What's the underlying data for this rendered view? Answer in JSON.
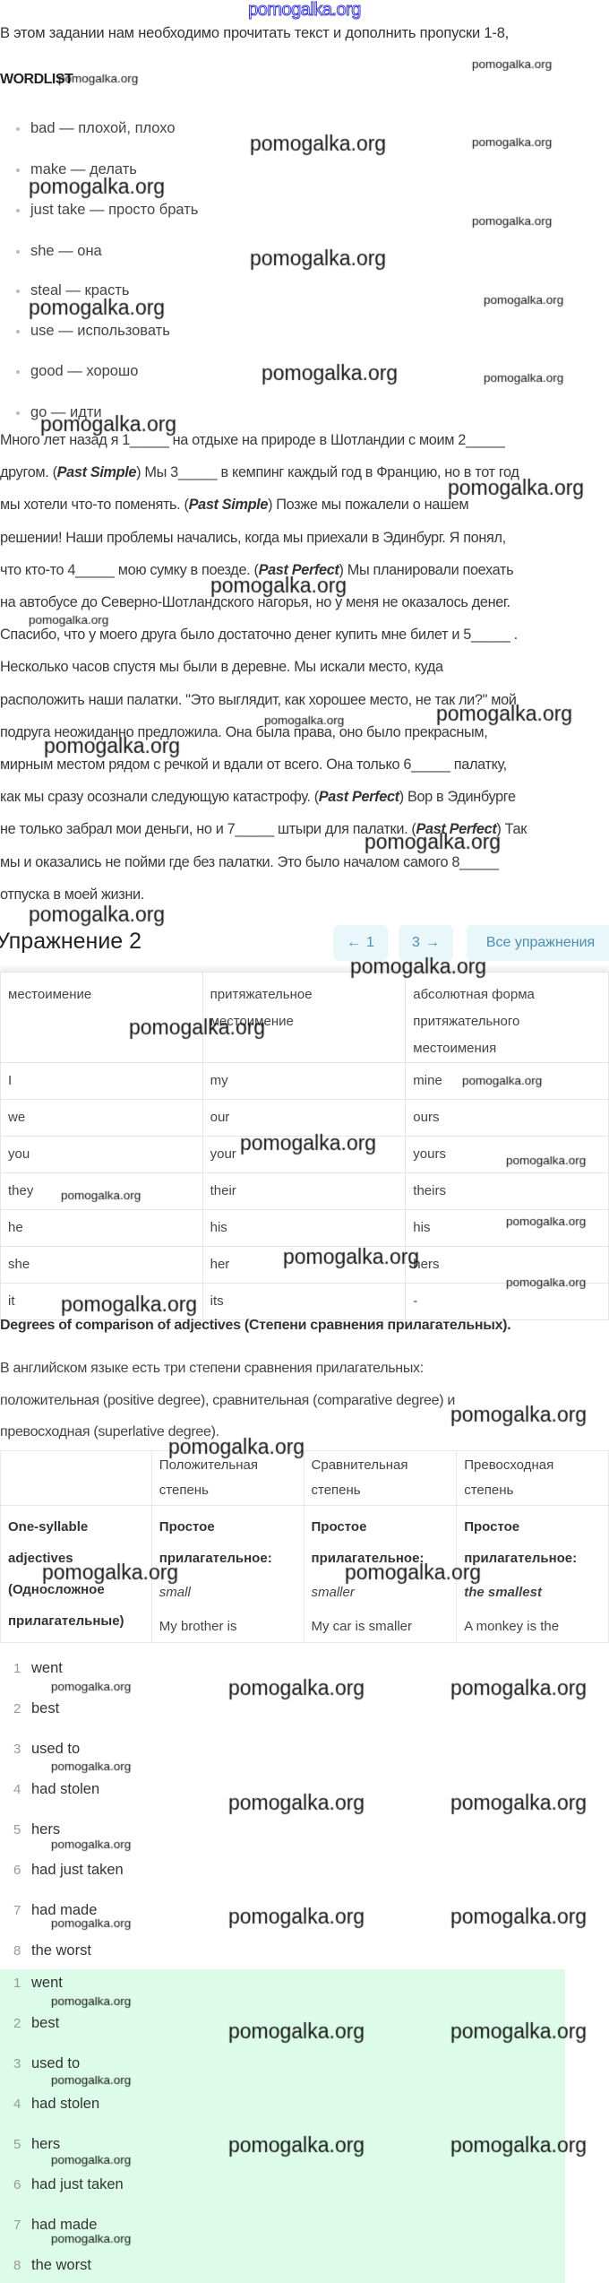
{
  "watermark": "pomogalka.org",
  "colors": {
    "accent_button_bg": "#e9f7fb",
    "accent_button_text": "#4c8fb0",
    "answer_highlight": "#dcfce9",
    "logo": "#3a3ad6"
  },
  "intro": "В этом задании нам необходимо прочитать текст и дополнить пропуски 1-8,",
  "wordlist": {
    "title": "WORDLIST",
    "items": [
      "bad — плохой, плохо",
      "make — делать",
      "just take — просто брать",
      "she — она",
      "steal — красть",
      "use — использовать",
      "good — хорошо",
      "go — идти"
    ]
  },
  "paragraph": [
    [
      "Много лет назад я 1_____ на отдыхе на природе в Шотландии с моим 2_____"
    ],
    [
      "другом. (",
      "Past Simple",
      ") Мы 3_____ в кемпинг каждый год в Францию, но в тот год"
    ],
    [
      "мы хотели что-то поменять. (",
      "Past Simple",
      ") Позже мы пожалели о нашем"
    ],
    [
      "решении! Наши проблемы начались, когда мы приехали в Эдинбург. Я понял,"
    ],
    [
      "что кто-то 4_____ мою сумку в поезде. (",
      "Past Perfect",
      ") Мы планировали поехать"
    ],
    [
      "на автобусе до Северно-Шотландского нагорья, но у меня не оказалось денег."
    ],
    [
      "Спасибо, что у моего друга было достаточно денег купить мне билет и 5_____ ."
    ],
    [
      "Несколько часов спустя мы были в деревне. Мы искали место, куда"
    ],
    [
      "расположить наши палатки. \"Это выглядит, как хорошее место, не так ли?\" мой"
    ],
    [
      "подруга неожиданно предложила. Она была права, оно было прекрасным,"
    ],
    [
      "мирным местом рядом с речкой и вдали от всего. Она только 6_____ палатку,"
    ],
    [
      "как мы сразу осознали следующую катастрофу. (",
      "Past Perfect",
      ") Вор в Эдинбурге"
    ],
    [
      "не только забрал мои деньги, но и 7_____ штыри для палатки. (",
      "Past Perfect",
      ") Так"
    ],
    [
      "мы и оказались не пойми где без палатки. Это было началом самого 8_____"
    ],
    [
      "отпуска в моей жизни."
    ]
  ],
  "exercise": {
    "title": "Упражнение 2",
    "prev": {
      "icon": "arrow-left-icon",
      "label": "1"
    },
    "next": {
      "icon": "arrow-right-icon",
      "label": "3"
    },
    "all": "Все упражнения"
  },
  "pronouns_table": {
    "headers": [
      "местоимение",
      "притяжательное местоимение",
      "абсолютная форма притяжательного местоимения"
    ],
    "rows": [
      [
        "I",
        "my",
        "mine"
      ],
      [
        "we",
        "our",
        "ours"
      ],
      [
        "you",
        "your",
        "yours"
      ],
      [
        "they",
        "their",
        "theirs"
      ],
      [
        "he",
        "his",
        "his"
      ],
      [
        "she",
        "her",
        "hers"
      ],
      [
        "it",
        "its",
        "-"
      ]
    ]
  },
  "degrees": {
    "title": "Degrees of comparison of adjectives (Степени сравнения прилагательных).",
    "lines": [
      "В английском языке есть три степени сравнения прилагательных:",
      "положительная (positive degree), сравнительная (comparative degree) и",
      "превосходная (superlative degree)."
    ],
    "table": {
      "headers": [
        "",
        "Положительная степень",
        "Сравнительная степень",
        "Превосходная степень"
      ],
      "row": {
        "label": "One-syllable adjectives (Односложное прилагательные)",
        "cells": [
          {
            "kind": "Простое прилагательное:",
            "word": "small",
            "example": "My brother is"
          },
          {
            "kind": "Простое прилагательное:",
            "word": "smaller",
            "example": "My car is smaller"
          },
          {
            "kind": "Простое прилагательное:",
            "word": "the smallest",
            "example": "A monkey is the"
          }
        ]
      }
    }
  },
  "answers": [
    "went",
    "best",
    "used to",
    "had stolen",
    "hers",
    "had just taken",
    "had made",
    "the worst"
  ],
  "answers_checked": [
    "went",
    "best",
    "used to",
    "had stolen",
    "hers",
    "had just taken",
    "had made",
    "the worst"
  ]
}
